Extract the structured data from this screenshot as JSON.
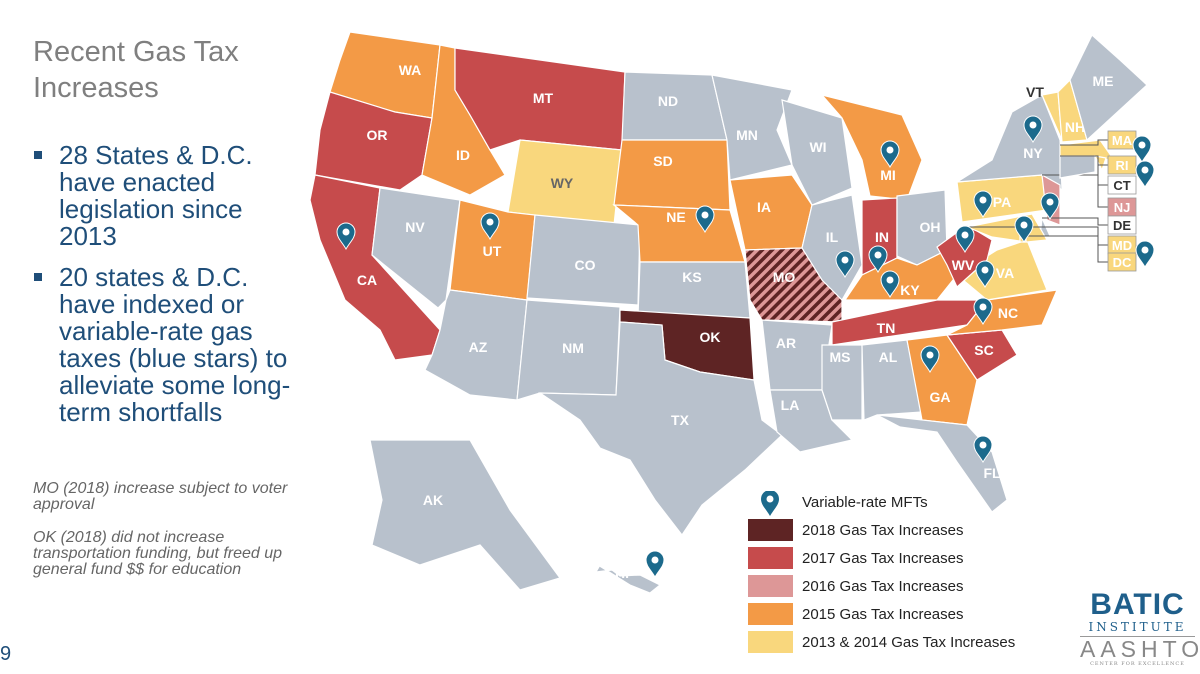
{
  "slide": {
    "title": "Recent Gas Tax Increases",
    "bullets": [
      "28 States & D.C. have enacted legislation since 2013",
      "20 states & D.C. have indexed or variable-rate gas taxes (blue stars) to alleviate some long-term shortfalls"
    ],
    "notes": [
      "MO (2018) increase subject to voter approval",
      "OK (2018) did not increase transportation funding, but freed up general fund $$ for education"
    ],
    "page_number": "9"
  },
  "colors": {
    "none": "#b8c1cc",
    "2018": "#5e2424",
    "2017": "#c64b4c",
    "2016": "#dd9797",
    "2015": "#f39a46",
    "2013-2014": "#f9d77d",
    "pin": "#1c6a8c"
  },
  "legend": [
    {
      "key": "pin",
      "label": "Variable-rate MFTs",
      "icon": "map-pin-icon"
    },
    {
      "key": "2018",
      "label": "2018 Gas Tax Increases"
    },
    {
      "key": "2017",
      "label": "2017 Gas Tax Increases"
    },
    {
      "key": "2016",
      "label": "2016 Gas Tax Increases"
    },
    {
      "key": "2015",
      "label": "2015 Gas Tax Increases"
    },
    {
      "key": "2013-2014",
      "label": "2013 & 2014 Gas Tax Increases"
    }
  ],
  "states": [
    {
      "abbr": "WA",
      "cat": "2015",
      "pin": false
    },
    {
      "abbr": "OR",
      "cat": "2017",
      "pin": false
    },
    {
      "abbr": "CA",
      "cat": "2017",
      "pin": true
    },
    {
      "abbr": "NV",
      "cat": "none",
      "pin": false
    },
    {
      "abbr": "ID",
      "cat": "2015",
      "pin": false
    },
    {
      "abbr": "MT",
      "cat": "2017",
      "pin": false
    },
    {
      "abbr": "WY",
      "cat": "2013-2014",
      "pin": false
    },
    {
      "abbr": "UT",
      "cat": "2015",
      "pin": true
    },
    {
      "abbr": "CO",
      "cat": "none",
      "pin": false
    },
    {
      "abbr": "AZ",
      "cat": "none",
      "pin": false
    },
    {
      "abbr": "NM",
      "cat": "none",
      "pin": false
    },
    {
      "abbr": "ND",
      "cat": "none",
      "pin": false
    },
    {
      "abbr": "SD",
      "cat": "2015",
      "pin": false
    },
    {
      "abbr": "NE",
      "cat": "2015",
      "pin": true
    },
    {
      "abbr": "KS",
      "cat": "none",
      "pin": false
    },
    {
      "abbr": "OK",
      "cat": "2018",
      "pin": false
    },
    {
      "abbr": "TX",
      "cat": "none",
      "pin": false
    },
    {
      "abbr": "MN",
      "cat": "none",
      "pin": false
    },
    {
      "abbr": "IA",
      "cat": "2015",
      "pin": false
    },
    {
      "abbr": "MO",
      "cat": "2018-pending",
      "pin": false
    },
    {
      "abbr": "AR",
      "cat": "none",
      "pin": false
    },
    {
      "abbr": "LA",
      "cat": "none",
      "pin": false
    },
    {
      "abbr": "WI",
      "cat": "none",
      "pin": false
    },
    {
      "abbr": "IL",
      "cat": "none",
      "pin": true
    },
    {
      "abbr": "MI",
      "cat": "2015",
      "pin": true
    },
    {
      "abbr": "IN",
      "cat": "2017",
      "pin": true
    },
    {
      "abbr": "OH",
      "cat": "none",
      "pin": false
    },
    {
      "abbr": "KY",
      "cat": "2015",
      "pin": true
    },
    {
      "abbr": "TN",
      "cat": "2017",
      "pin": false
    },
    {
      "abbr": "MS",
      "cat": "none",
      "pin": false
    },
    {
      "abbr": "AL",
      "cat": "none",
      "pin": false
    },
    {
      "abbr": "GA",
      "cat": "2015",
      "pin": true
    },
    {
      "abbr": "FL",
      "cat": "none",
      "pin": true
    },
    {
      "abbr": "SC",
      "cat": "2017",
      "pin": false
    },
    {
      "abbr": "NC",
      "cat": "2015",
      "pin": true
    },
    {
      "abbr": "VA",
      "cat": "2013-2014",
      "pin": true
    },
    {
      "abbr": "WV",
      "cat": "2017",
      "pin": true
    },
    {
      "abbr": "PA",
      "cat": "2013-2014",
      "pin": true
    },
    {
      "abbr": "NY",
      "cat": "none",
      "pin": true
    },
    {
      "abbr": "NJ",
      "cat": "2016",
      "pin": true
    },
    {
      "abbr": "DE",
      "cat": "none",
      "pin": false
    },
    {
      "abbr": "MD",
      "cat": "2013-2014",
      "pin": true
    },
    {
      "abbr": "VT",
      "cat": "2013-2014",
      "pin": true
    },
    {
      "abbr": "NH",
      "cat": "2013-2014",
      "pin": false
    },
    {
      "abbr": "ME",
      "cat": "none",
      "pin": false
    },
    {
      "abbr": "MA",
      "cat": "2013-2014",
      "pin": true
    },
    {
      "abbr": "RI",
      "cat": "2013-2014",
      "pin": true
    },
    {
      "abbr": "CT",
      "cat": "none",
      "pin": false
    },
    {
      "abbr": "DC",
      "cat": "2013-2014",
      "pin": true
    },
    {
      "abbr": "AK",
      "cat": "none",
      "pin": false
    },
    {
      "abbr": "HI",
      "cat": "none",
      "pin": true
    }
  ],
  "logo": {
    "line1": "BATIC",
    "line2": "INSTITUTE",
    "line3": "AASHTO",
    "line4": "CENTER FOR EXCELLENCE"
  }
}
